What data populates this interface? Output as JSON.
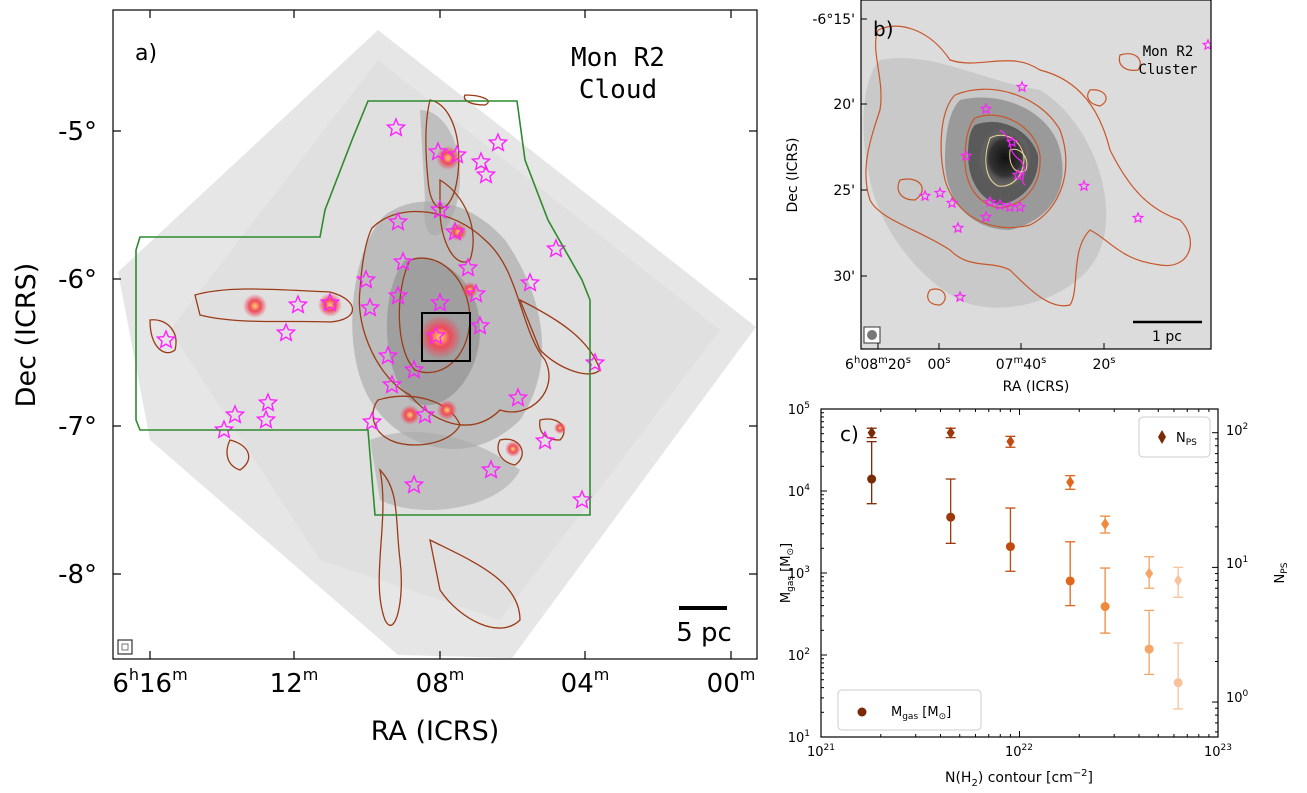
{
  "panel_a": {
    "label": "a)",
    "title_line1": "Mon R2",
    "title_line2": "Cloud",
    "ylabel": "Dec (ICRS)",
    "xlabel": "RA (ICRS)",
    "yticks": [
      {
        "sign": "-",
        "value": "5°"
      },
      {
        "sign": "-",
        "value": "6°"
      },
      {
        "sign": "-",
        "value": "7°"
      },
      {
        "sign": "-",
        "value": "8°"
      }
    ],
    "xticks": [
      {
        "h": "6",
        "hu": "h",
        "m": "16",
        "mu": "m"
      },
      {
        "h": "",
        "hu": "",
        "m": "12",
        "mu": "m"
      },
      {
        "h": "",
        "hu": "",
        "m": "08",
        "mu": "m"
      },
      {
        "h": "",
        "hu": "",
        "m": "04",
        "mu": "m"
      },
      {
        "h": "",
        "hu": "",
        "m": "00",
        "mu": "m"
      }
    ],
    "scalebar_label": "5 pc",
    "colors": {
      "contour": "#9b3a16",
      "outline": "#2e8b2e",
      "star": "#ff22ff",
      "box": "#000000"
    }
  },
  "panel_b": {
    "label": "b)",
    "title_line1": "Mon R2",
    "title_line2": "Cluster",
    "ylabel": "Dec (ICRS)",
    "xlabel": "RA (ICRS)",
    "ytick_first": "-6°15'",
    "yticks": [
      "20'",
      "25'",
      "30'"
    ],
    "xticks": [
      {
        "h": "6",
        "hu": "h",
        "m": "08",
        "mu": "m",
        "s": "20",
        "su": "s"
      },
      {
        "h": "",
        "hu": "",
        "m": "",
        "mu": "",
        "s": "00",
        "su": "s"
      },
      {
        "h": "",
        "hu": "",
        "m": "07",
        "mu": "m",
        "s": "40",
        "su": "s"
      },
      {
        "h": "",
        "hu": "",
        "m": "",
        "mu": "",
        "s": "20",
        "su": "s"
      }
    ],
    "scalebar_label": "1 pc"
  },
  "chart_data": {
    "type": "scatter",
    "label": "c)",
    "xlabel_pre": "N(H",
    "xlabel_sub": "2",
    "xlabel_post": ") contour [cm",
    "xlabel_sup": "−2",
    "xlabel_end": "]",
    "ylabel_left": "M_gas [M⊙]",
    "ylabel_right": "N_PS",
    "xscale": "log",
    "yscale_left": "log",
    "yscale_right": "log",
    "xlim": [
      1e+21,
      1e+23
    ],
    "ylim_left": [
      10,
      100000
    ],
    "ylim_right": [
      0.55,
      150
    ],
    "xticks": [
      {
        "base": "10",
        "exp": "21"
      },
      {
        "base": "10",
        "exp": "22"
      },
      {
        "base": "10",
        "exp": "23"
      }
    ],
    "yticks_left": [
      {
        "base": "10",
        "exp": "1"
      },
      {
        "base": "10",
        "exp": "2"
      },
      {
        "base": "10",
        "exp": "3"
      },
      {
        "base": "10",
        "exp": "4"
      },
      {
        "base": "10",
        "exp": "5"
      }
    ],
    "yticks_right": [
      {
        "base": "10",
        "exp": "0"
      },
      {
        "base": "10",
        "exp": "1"
      },
      {
        "base": "10",
        "exp": "2"
      }
    ],
    "x": [
      1.8e+21,
      4.5e+21,
      9e+21,
      1.8e+22,
      2.7e+22,
      4.5e+22,
      6.3e+22
    ],
    "colors": [
      "#7a2a05",
      "#9b380c",
      "#c04a10",
      "#e0661c",
      "#ef8a3c",
      "#f5a666",
      "#f8c29c"
    ],
    "series": [
      {
        "name": "M_gas [M⊙]",
        "marker": "circle",
        "axis": "left",
        "values": [
          14000,
          4800,
          2100,
          800,
          390,
          118,
          46
        ],
        "err_low": [
          7000,
          2300,
          1050,
          400,
          185,
          58,
          22
        ],
        "err_high": [
          40000,
          14000,
          6200,
          2400,
          1150,
          350,
          140
        ]
      },
      {
        "name": "N_PS",
        "marker": "diamond",
        "axis": "right",
        "values": [
          100,
          100,
          86,
          43,
          21,
          9,
          8
        ],
        "err_low": [
          92,
          92,
          78,
          38,
          18,
          7,
          6
        ],
        "err_high": [
          108,
          108,
          94,
          48,
          24,
          12,
          10
        ]
      }
    ],
    "legend_upper": {
      "pre": "N",
      "sub": "PS"
    },
    "legend_lower": {
      "pre": "M",
      "sub": "gas",
      "post": " [M",
      "sun": "⊙",
      "end": "]"
    },
    "legend_placement": [
      "top-right",
      "bottom-left"
    ]
  }
}
